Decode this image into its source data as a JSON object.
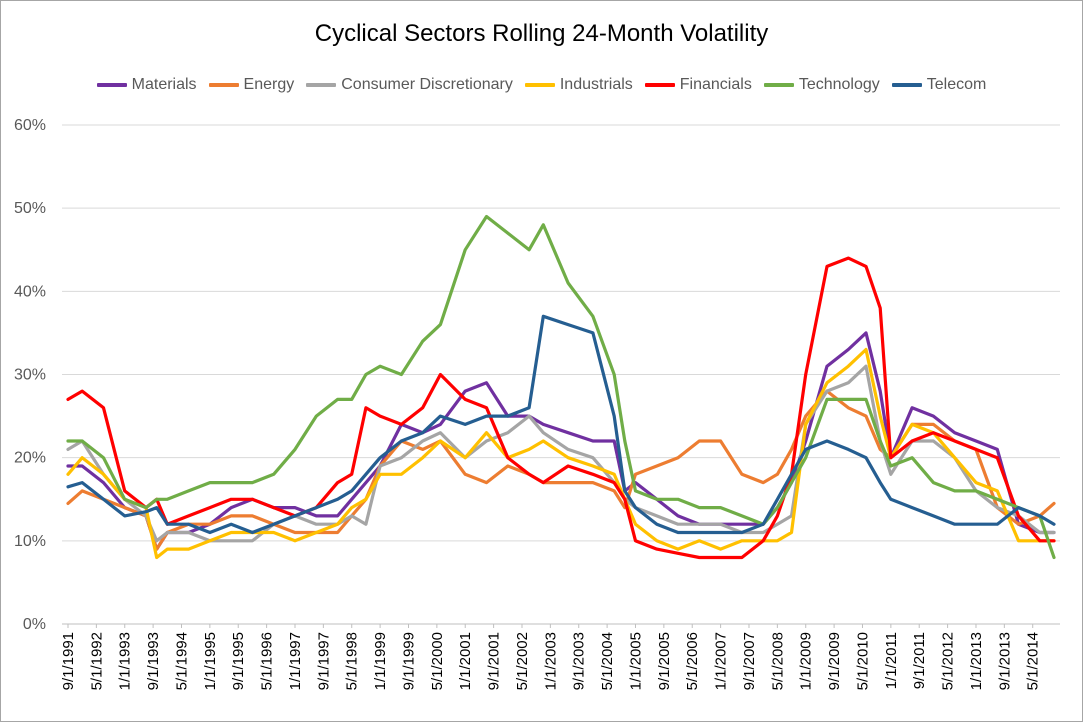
{
  "chart_data": {
    "type": "line",
    "title": "Cyclical Sectors Rolling 24-Month Volatility",
    "xlabel": "",
    "ylabel": "",
    "ylim": [
      0,
      0.6
    ],
    "y_ticks": [
      "0%",
      "10%",
      "20%",
      "30%",
      "40%",
      "50%",
      "60%"
    ],
    "grid": "horizontal",
    "legend": "top",
    "x_ticks": [
      "9/1/1991",
      "5/1/1992",
      "1/1/1993",
      "9/1/1993",
      "5/1/1994",
      "1/1/1995",
      "9/1/1995",
      "5/1/1996",
      "1/1/1997",
      "9/1/1997",
      "5/1/1998",
      "1/1/1999",
      "9/1/1999",
      "5/1/2000",
      "1/1/2001",
      "9/1/2001",
      "5/1/2002",
      "1/1/2003",
      "9/1/2003",
      "5/1/2004",
      "1/1/2005",
      "9/1/2005",
      "5/1/2006",
      "1/1/2007",
      "9/1/2007",
      "5/1/2008",
      "1/1/2009",
      "9/1/2009",
      "5/1/2010",
      "1/1/2011",
      "9/1/2011",
      "5/1/2012",
      "1/1/2013",
      "9/1/2013",
      "5/1/2014"
    ],
    "x_dates": [
      "1991-09",
      "1992-01",
      "1992-07",
      "1993-01",
      "1993-07",
      "1993-10",
      "1994-01",
      "1994-07",
      "1995-01",
      "1995-07",
      "1996-01",
      "1996-07",
      "1997-01",
      "1997-07",
      "1998-01",
      "1998-05",
      "1998-09",
      "1999-01",
      "1999-07",
      "2000-01",
      "2000-06",
      "2001-01",
      "2001-07",
      "2002-01",
      "2002-07",
      "2002-11",
      "2003-06",
      "2004-01",
      "2004-07",
      "2004-10",
      "2005-01",
      "2005-07",
      "2006-01",
      "2006-07",
      "2007-01",
      "2007-07",
      "2008-01",
      "2008-05",
      "2008-09",
      "2009-01",
      "2009-07",
      "2010-01",
      "2010-06",
      "2010-10",
      "2011-01",
      "2011-07",
      "2012-01",
      "2012-07",
      "2013-01",
      "2013-07",
      "2014-01",
      "2014-07",
      "2014-11"
    ],
    "series": [
      {
        "name": "Materials",
        "color": "#7030A0",
        "values": [
          0.19,
          0.19,
          0.17,
          0.14,
          0.13,
          0.09,
          0.11,
          0.11,
          0.12,
          0.14,
          0.15,
          0.14,
          0.14,
          0.13,
          0.13,
          0.15,
          0.17,
          0.19,
          0.24,
          0.23,
          0.24,
          0.28,
          0.29,
          0.25,
          0.25,
          0.24,
          0.23,
          0.22,
          0.22,
          0.16,
          0.17,
          0.15,
          0.13,
          0.12,
          0.12,
          0.12,
          0.12,
          0.14,
          0.17,
          0.22,
          0.31,
          0.33,
          0.35,
          0.28,
          0.2,
          0.26,
          0.25,
          0.23,
          0.22,
          0.21,
          0.12,
          0.11,
          0.11
        ]
      },
      {
        "name": "Energy",
        "color": "#ED7D31",
        "values": [
          0.145,
          0.16,
          0.15,
          0.14,
          0.13,
          0.09,
          0.11,
          0.12,
          0.12,
          0.13,
          0.13,
          0.12,
          0.11,
          0.11,
          0.11,
          0.13,
          0.15,
          0.19,
          0.22,
          0.21,
          0.22,
          0.18,
          0.17,
          0.19,
          0.18,
          0.17,
          0.17,
          0.17,
          0.16,
          0.14,
          0.18,
          0.19,
          0.2,
          0.22,
          0.22,
          0.18,
          0.17,
          0.18,
          0.21,
          0.25,
          0.28,
          0.26,
          0.25,
          0.21,
          0.2,
          0.24,
          0.24,
          0.22,
          0.21,
          0.14,
          0.12,
          0.13,
          0.145
        ]
      },
      {
        "name": "Consumer Discretionary",
        "color": "#A5A5A5",
        "values": [
          0.21,
          0.22,
          0.18,
          0.15,
          0.13,
          0.1,
          0.11,
          0.11,
          0.1,
          0.1,
          0.1,
          0.12,
          0.13,
          0.12,
          0.12,
          0.13,
          0.12,
          0.19,
          0.2,
          0.22,
          0.23,
          0.2,
          0.22,
          0.23,
          0.25,
          0.23,
          0.21,
          0.2,
          0.17,
          0.15,
          0.14,
          0.13,
          0.12,
          0.12,
          0.12,
          0.11,
          0.11,
          0.12,
          0.13,
          0.24,
          0.28,
          0.29,
          0.31,
          0.22,
          0.18,
          0.22,
          0.22,
          0.2,
          0.16,
          0.14,
          0.13,
          0.11,
          0.11
        ]
      },
      {
        "name": "Industrials",
        "color": "#FFC000",
        "values": [
          0.18,
          0.2,
          0.18,
          0.15,
          0.14,
          0.08,
          0.09,
          0.09,
          0.1,
          0.11,
          0.11,
          0.11,
          0.1,
          0.11,
          0.12,
          0.14,
          0.15,
          0.18,
          0.18,
          0.2,
          0.22,
          0.2,
          0.23,
          0.2,
          0.21,
          0.22,
          0.2,
          0.19,
          0.18,
          0.15,
          0.12,
          0.1,
          0.09,
          0.1,
          0.09,
          0.1,
          0.1,
          0.1,
          0.11,
          0.24,
          0.29,
          0.31,
          0.33,
          0.25,
          0.2,
          0.24,
          0.23,
          0.2,
          0.17,
          0.16,
          0.1,
          0.1,
          0.1
        ]
      },
      {
        "name": "Financials",
        "color": "#FF0000",
        "values": [
          0.27,
          0.28,
          0.26,
          0.16,
          0.14,
          0.15,
          0.12,
          0.13,
          0.14,
          0.15,
          0.15,
          0.14,
          0.13,
          0.14,
          0.17,
          0.18,
          0.26,
          0.25,
          0.24,
          0.26,
          0.3,
          0.27,
          0.26,
          0.2,
          0.18,
          0.17,
          0.19,
          0.18,
          0.17,
          0.15,
          0.1,
          0.09,
          0.085,
          0.08,
          0.08,
          0.08,
          0.1,
          0.13,
          0.18,
          0.3,
          0.43,
          0.44,
          0.43,
          0.38,
          0.2,
          0.22,
          0.23,
          0.22,
          0.21,
          0.2,
          0.13,
          0.1,
          0.1
        ]
      },
      {
        "name": "Technology",
        "color": "#70AD47",
        "values": [
          0.22,
          0.22,
          0.2,
          0.15,
          0.14,
          0.15,
          0.15,
          0.16,
          0.17,
          0.17,
          0.17,
          0.18,
          0.21,
          0.25,
          0.27,
          0.27,
          0.3,
          0.31,
          0.3,
          0.34,
          0.36,
          0.45,
          0.49,
          0.47,
          0.45,
          0.48,
          0.41,
          0.37,
          0.3,
          0.22,
          0.16,
          0.15,
          0.15,
          0.14,
          0.14,
          0.13,
          0.12,
          0.14,
          0.17,
          0.2,
          0.27,
          0.27,
          0.27,
          0.22,
          0.19,
          0.2,
          0.17,
          0.16,
          0.16,
          0.15,
          0.14,
          0.13,
          0.08
        ]
      },
      {
        "name": "Telecom",
        "color": "#255E91",
        "values": [
          0.165,
          0.17,
          0.15,
          0.13,
          0.135,
          0.14,
          0.12,
          0.12,
          0.11,
          0.12,
          0.11,
          0.12,
          0.13,
          0.14,
          0.15,
          0.16,
          0.18,
          0.2,
          0.22,
          0.23,
          0.25,
          0.24,
          0.25,
          0.25,
          0.26,
          0.37,
          0.36,
          0.35,
          0.25,
          0.16,
          0.14,
          0.12,
          0.11,
          0.11,
          0.11,
          0.11,
          0.12,
          0.15,
          0.18,
          0.21,
          0.22,
          0.21,
          0.2,
          0.17,
          0.15,
          0.14,
          0.13,
          0.12,
          0.12,
          0.12,
          0.14,
          0.13,
          0.12
        ]
      }
    ]
  }
}
